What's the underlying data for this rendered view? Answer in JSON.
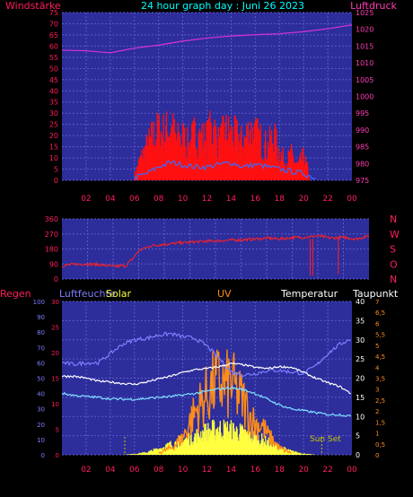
{
  "header": {
    "left_label": "Windstärke",
    "title": "24 hour graph day : Juni 26 2023",
    "right_label": "Luftdruck"
  },
  "colors": {
    "plot_bg": "#2d2d9c",
    "grid": "#5a5ac8",
    "wind_red": "#ff1010",
    "gust_blue": "#3a6bff",
    "pressure": "#cc33cc",
    "wind_dir": "#ff2020",
    "solar": "#ffff40",
    "uv": "#ff8c1a",
    "temp": "#ffffff",
    "humidity": "#7e7eff",
    "dewpoint": "#80e0ff",
    "sunrise_sunset": "#c8c800",
    "axis_red": "#ff1e5a",
    "axis_pink": "#ff3cb4",
    "title_cyan": "#00ffff"
  },
  "chart_data": [
    {
      "type": "line",
      "name": "wind_pressure",
      "left_axis": {
        "label": "Windstärke",
        "ylim": [
          0,
          75
        ],
        "ticks": [
          "0",
          "5",
          "10",
          "15",
          "20",
          "25",
          "30",
          "35",
          "40",
          "45",
          "50",
          "55",
          "60",
          "65",
          "70",
          "75"
        ]
      },
      "right_axis": {
        "label": "Luftdruck",
        "ylim": [
          975,
          1025
        ],
        "ticks": [
          "975",
          "980",
          "985",
          "990",
          "995",
          "1000",
          "1005",
          "1010",
          "1015",
          "1020",
          "1025"
        ]
      },
      "x_ticks": [
        "02",
        "04",
        "06",
        "08",
        "10",
        "12",
        "14",
        "16",
        "18",
        "20",
        "22",
        "00"
      ],
      "series": [
        {
          "name": "Luftdruck",
          "axis": "right",
          "x": [
            0,
            2,
            4,
            6,
            8,
            10,
            12,
            14,
            16,
            18,
            20,
            22,
            24
          ],
          "y": [
            1013.8,
            1013.6,
            1013.0,
            1014.4,
            1015.3,
            1016.5,
            1017.4,
            1018.0,
            1018.4,
            1018.7,
            1019.3,
            1020.2,
            1021.3
          ]
        },
        {
          "name": "Windstärke",
          "axis": "left",
          "x": [
            6,
            6.5,
            7,
            7.5,
            8,
            8.5,
            9,
            9.5,
            10,
            10.5,
            11,
            11.5,
            12,
            12.5,
            13,
            13.5,
            14,
            14.5,
            15,
            15.5,
            16,
            16.5,
            17,
            17.5,
            18,
            18.5,
            19,
            19.5,
            20,
            20.5
          ],
          "y": [
            3,
            12,
            18,
            24,
            27,
            26,
            30,
            22,
            24,
            19,
            26,
            23,
            23,
            30,
            20,
            27,
            25,
            24,
            20,
            28,
            25,
            22,
            18,
            24,
            16,
            10,
            14,
            8,
            13,
            3
          ]
        },
        {
          "name": "Böen",
          "axis": "left",
          "x": [
            6,
            7,
            8,
            9,
            10,
            11,
            12,
            13,
            14,
            15,
            16,
            17,
            18,
            19,
            20,
            21
          ],
          "y": [
            1,
            3,
            6,
            8,
            7,
            6,
            6,
            7,
            8,
            6,
            7,
            6,
            5,
            4,
            3,
            1
          ]
        }
      ]
    },
    {
      "type": "line",
      "name": "wind_direction",
      "left_axis": {
        "ylim": [
          0,
          360
        ],
        "ticks": [
          "0",
          "90",
          "180",
          "270",
          "360"
        ]
      },
      "right_axis": {
        "ticks": [
          "N",
          "W",
          "S",
          "O",
          "N"
        ]
      },
      "series": [
        {
          "name": "Windrichtung",
          "x": [
            0,
            1,
            2,
            3,
            4,
            5,
            5.5,
            6,
            7,
            8,
            9,
            10,
            11,
            12,
            13,
            14,
            15,
            16,
            17,
            18,
            19,
            20,
            21,
            22,
            23,
            24
          ],
          "y": [
            80,
            88,
            90,
            85,
            75,
            80,
            120,
            170,
            200,
            208,
            215,
            220,
            225,
            228,
            232,
            235,
            238,
            245,
            240,
            248,
            250,
            258,
            245,
            250,
            240,
            258
          ]
        }
      ]
    },
    {
      "type": "line",
      "name": "climate",
      "labels": {
        "rain": "Regen",
        "humidity": "Luftfeuchte",
        "solar": "Solar",
        "uv": "UV",
        "temp": "Temperatur",
        "dewpoint": "Taupunkt",
        "sunset": "Sun Set"
      },
      "axis_rain": {
        "ticks": [
          "0",
          "10",
          "20",
          "30",
          "40",
          "50",
          "60",
          "70",
          "80",
          "90",
          "100"
        ]
      },
      "axis_humidity": {
        "ylim": [
          0,
          30
        ],
        "ticks": [
          "0",
          "5",
          "10",
          "15",
          "20",
          "25",
          "30"
        ]
      },
      "axis_temp": {
        "ylim": [
          0,
          40
        ],
        "ticks": [
          "0",
          "5",
          "10",
          "15",
          "20",
          "25",
          "30",
          "35",
          "40"
        ]
      },
      "axis_uv": {
        "ylim": [
          0,
          7
        ],
        "ticks": [
          "0",
          "0,5",
          "1",
          "1,5",
          "2",
          "2,5",
          "3",
          "3,5",
          "4",
          "4,5",
          "5",
          "5,5",
          "6",
          "6,5",
          "7"
        ]
      },
      "x_ticks": [
        "02",
        "04",
        "06",
        "08",
        "10",
        "12",
        "14",
        "16",
        "18",
        "20",
        "22",
        "00"
      ],
      "sunrise": 5.2,
      "sunset": 21.5,
      "series": [
        {
          "name": "Luftfeuchte",
          "x": [
            0,
            1,
            2,
            3,
            4,
            5,
            6,
            7,
            8,
            9,
            10,
            11,
            12,
            13,
            14,
            15,
            16,
            17,
            18,
            19,
            20,
            21,
            22,
            23,
            24
          ],
          "y": [
            60,
            59,
            60,
            60,
            66,
            72,
            75,
            76,
            78,
            79,
            77,
            76,
            71,
            63,
            54,
            52,
            53,
            55,
            55,
            54,
            53,
            58,
            66,
            72,
            76
          ]
        },
        {
          "name": "Temperatur",
          "x": [
            0,
            1,
            2,
            3,
            4,
            5,
            6,
            7,
            8,
            9,
            10,
            11,
            12,
            13,
            14,
            15,
            16,
            17,
            18,
            19,
            20,
            21,
            22,
            23,
            24
          ],
          "y": [
            20.5,
            20.5,
            20.0,
            19.2,
            19.0,
            18.6,
            18.4,
            19.0,
            19.8,
            20.5,
            21.5,
            22.2,
            22.5,
            23.0,
            23.8,
            23.5,
            22.8,
            22.5,
            23.0,
            22.8,
            21.5,
            20.0,
            18.8,
            17.8,
            15.8
          ]
        },
        {
          "name": "Taupunkt",
          "x": [
            0,
            1,
            2,
            3,
            4,
            5,
            6,
            7,
            8,
            9,
            10,
            11,
            12,
            13,
            14,
            15,
            16,
            17,
            18,
            19,
            20,
            21,
            22,
            23,
            24
          ],
          "y": [
            16.0,
            15.5,
            15.2,
            15.0,
            14.6,
            14.5,
            14.5,
            14.7,
            15.0,
            15.2,
            15.6,
            16.0,
            16.6,
            17.2,
            17.5,
            17.0,
            16.0,
            14.5,
            13.0,
            12.0,
            11.5,
            11.0,
            10.5,
            10.5,
            10.0
          ]
        },
        {
          "name": "Solar",
          "x": [
            5,
            6,
            7,
            8,
            9,
            10,
            11,
            12,
            13,
            14,
            15,
            16,
            17,
            18,
            19,
            20,
            21
          ],
          "y": [
            0,
            0.3,
            0.8,
            2.0,
            3.5,
            5.0,
            6.5,
            8.0,
            9.0,
            8.5,
            7.5,
            6.0,
            4.5,
            2.5,
            1.2,
            0.4,
            0
          ]
        },
        {
          "name": "UV",
          "x": [
            8,
            9,
            10,
            10.5,
            11,
            11.5,
            12,
            12.5,
            13,
            13.5,
            14,
            14.5,
            15,
            15.5,
            16,
            16.5,
            17,
            17.5,
            18,
            19
          ],
          "y": [
            0.1,
            0.4,
            1.0,
            1.8,
            2.5,
            3.0,
            3.5,
            4.0,
            4.3,
            4.0,
            4.2,
            3.6,
            3.2,
            2.4,
            1.8,
            1.8,
            1.2,
            0.8,
            0.4,
            0.1
          ]
        }
      ]
    }
  ]
}
